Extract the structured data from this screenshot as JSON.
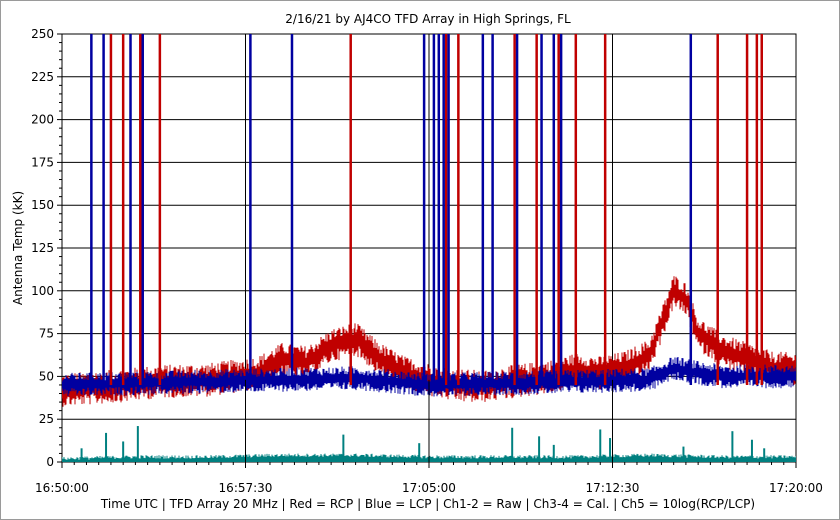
{
  "chart_data": {
    "type": "line",
    "title": "2/16/21  by  AJ4CO TFD Array  in  High Springs, FL",
    "ylabel": "Antenna Temp (kK)",
    "xlabel": "Time UTC | TFD Array 20 MHz | Red = RCP | Blue = LCP | Ch1-2 = Raw | Ch3-4 = Cal. | Ch5 = 10log(RCP/LCP)",
    "ylim": [
      0,
      250
    ],
    "yticks": [
      "0",
      "25",
      "50",
      "75",
      "100",
      "125",
      "150",
      "175",
      "200",
      "225",
      "250"
    ],
    "x_range": [
      "16:50:00",
      "17:20:00"
    ],
    "xticks": [
      "16:50:00",
      "16:57:30",
      "17:05:00",
      "17:12:30",
      "17:20:00"
    ],
    "grid": true,
    "series": [
      {
        "name": "Red = RCP",
        "color": "#c00000",
        "x_minutes": [
          0,
          2,
          4,
          6,
          8,
          9,
          10,
          11,
          12,
          13,
          14,
          15,
          16,
          17,
          18,
          19,
          20,
          21,
          22,
          23,
          24,
          24.5,
          25,
          25.5,
          26,
          27,
          28,
          29,
          30
        ],
        "values": [
          42,
          44,
          47,
          48,
          52,
          60,
          58,
          68,
          72,
          60,
          52,
          48,
          45,
          44,
          46,
          48,
          50,
          54,
          52,
          55,
          62,
          80,
          100,
          95,
          75,
          65,
          60,
          55,
          54
        ]
      },
      {
        "name": "Blue = LCP",
        "color": "#0000a0",
        "x_minutes": [
          0,
          3,
          6,
          9,
          12,
          15,
          18,
          21,
          24,
          25,
          26,
          27,
          30
        ],
        "values": [
          45,
          46,
          47,
          48,
          49,
          45,
          46,
          47,
          48,
          55,
          52,
          50,
          50
        ]
      },
      {
        "name": "Ch5 = 10log(RCP/LCP)",
        "color": "#008080",
        "x_minutes": [
          0,
          3,
          6,
          9,
          12,
          15,
          18,
          21,
          24,
          27,
          30
        ],
        "values": [
          1,
          2,
          2,
          3,
          3,
          2,
          2,
          2,
          3,
          2,
          2
        ]
      }
    ],
    "rcp_spike_minutes": [
      2,
      2.5,
      3.2,
      4,
      11.8,
      15.7,
      16.2,
      18.5,
      19.4,
      20.3,
      21,
      22.2,
      26.8,
      28,
      28.4,
      28.6
    ],
    "lcp_spike_minutes": [
      1.2,
      1.7,
      2.8,
      3.3,
      7.7,
      9.4,
      14.8,
      15.2,
      15.4,
      15.6,
      15.8,
      17.2,
      17.6,
      18.6,
      19.6,
      20.1,
      20.4,
      25.7
    ],
    "ch5_spike_minutes": [
      0.8,
      1.8,
      2.5,
      3.1,
      11.5,
      14.6,
      18.4,
      19.5,
      20.1,
      22.0,
      22.4,
      25.4,
      27.4,
      28.2,
      28.7
    ],
    "markers_minutes": [
      7.5,
      15,
      22.5
    ]
  }
}
